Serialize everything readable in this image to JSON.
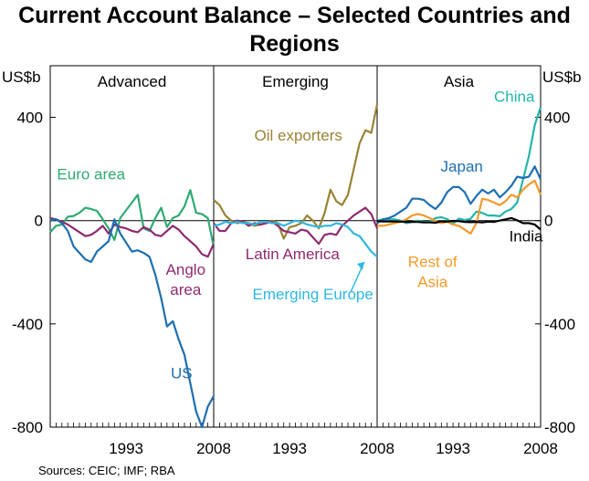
{
  "chart_data": {
    "type": "line",
    "title": "Current Account Balance – Selected Countries and Regions",
    "y_unit_left": "US$b",
    "y_unit_right": "US$b",
    "ylim": [
      -800,
      600
    ],
    "yticks": [
      400,
      0,
      -400,
      -800
    ],
    "ytick_labels": [
      "400",
      "0",
      "-400",
      "-800"
    ],
    "xticks": [
      1993,
      2008
    ],
    "xlim": [
      1980,
      2008
    ],
    "grid": false,
    "panels": [
      {
        "name": "Advanced",
        "series": [
          {
            "name": "Euro area",
            "color": "#2eaa72",
            "label_x": 1987,
            "label_y": 160,
            "x": [
              1980,
              1981,
              1982,
              1983,
              1984,
              1985,
              1986,
              1987,
              1988,
              1989,
              1990,
              1991,
              1992,
              1993,
              1994,
              1995,
              1996,
              1997,
              1998,
              1999,
              2000,
              2001,
              2002,
              2003,
              2004,
              2005,
              2006,
              2007,
              2008
            ],
            "values": [
              -45,
              -20,
              -15,
              15,
              18,
              30,
              50,
              45,
              38,
              5,
              -30,
              -75,
              10,
              40,
              70,
              100,
              -30,
              -40,
              10,
              50,
              -25,
              10,
              20,
              55,
              118,
              30,
              25,
              10,
              -100
            ]
          },
          {
            "name": "Anglo area",
            "color": "#8e2a6f",
            "label_x": 2003.2,
            "label_y": -210,
            "x": [
              1980,
              1981,
              1982,
              1983,
              1984,
              1985,
              1986,
              1987,
              1988,
              1989,
              1990,
              1991,
              1992,
              1993,
              1994,
              1995,
              1996,
              1997,
              1998,
              1999,
              2000,
              2001,
              2002,
              2003,
              2004,
              2005,
              2006,
              2007,
              2008
            ],
            "values": [
              10,
              5,
              -5,
              -15,
              -30,
              -45,
              -60,
              -55,
              -40,
              -20,
              -50,
              -15,
              -25,
              -30,
              -40,
              -45,
              -25,
              -35,
              -55,
              -60,
              -40,
              -20,
              -35,
              -60,
              -80,
              -100,
              -130,
              -140,
              -90
            ]
          },
          {
            "name": "US",
            "color": "#1e6fb0",
            "label_x": 2002.5,
            "label_y": -610,
            "x": [
              1980,
              1981,
              1982,
              1983,
              1984,
              1985,
              1986,
              1987,
              1988,
              1989,
              1990,
              1991,
              1992,
              1993,
              1994,
              1995,
              1996,
              1997,
              1998,
              1999,
              2000,
              2001,
              2002,
              2003,
              2004,
              2005,
              2006,
              2007,
              2008
            ],
            "values": [
              2,
              5,
              -10,
              -40,
              -100,
              -125,
              -150,
              -160,
              -120,
              -100,
              -80,
              5,
              -50,
              -85,
              -120,
              -115,
              -125,
              -140,
              -210,
              -300,
              -410,
              -390,
              -460,
              -520,
              -630,
              -740,
              -800,
              -720,
              -680
            ]
          }
        ]
      },
      {
        "name": "Emerging",
        "series": [
          {
            "name": "Oil exporters",
            "color": "#9a8236",
            "label_x": 1994.5,
            "label_y": 310,
            "x": [
              1980,
              1981,
              1982,
              1983,
              1984,
              1985,
              1986,
              1987,
              1988,
              1989,
              1990,
              1991,
              1992,
              1993,
              1994,
              1995,
              1996,
              1997,
              1998,
              1999,
              2000,
              2001,
              2002,
              2003,
              2004,
              2005,
              2006,
              2007,
              2008
            ],
            "values": [
              80,
              60,
              20,
              0,
              -10,
              -5,
              -10,
              -20,
              -15,
              -10,
              0,
              -10,
              -70,
              -25,
              -20,
              -10,
              20,
              0,
              -30,
              30,
              120,
              75,
              60,
              100,
              200,
              300,
              350,
              340,
              450
            ]
          },
          {
            "name": "Latin America",
            "color": "#8e2a6f",
            "label_x": 1993.5,
            "label_y": -150,
            "x": [
              1980,
              1981,
              1982,
              1983,
              1984,
              1985,
              1986,
              1987,
              1988,
              1989,
              1990,
              1991,
              1992,
              1993,
              1994,
              1995,
              1996,
              1997,
              1998,
              1999,
              2000,
              2001,
              2002,
              2003,
              2004,
              2005,
              2006,
              2007,
              2008
            ],
            "values": [
              -10,
              -40,
              -40,
              -10,
              0,
              -5,
              -20,
              -10,
              -15,
              -10,
              -5,
              -20,
              -40,
              -45,
              -50,
              -35,
              -40,
              -65,
              -90,
              -55,
              -50,
              -55,
              -20,
              0,
              20,
              35,
              50,
              25,
              -30
            ]
          },
          {
            "name": "Emerging Europe",
            "color": "#2fb8e0",
            "label_x": 1997,
            "label_y": -305,
            "x": [
              1980,
              1981,
              1982,
              1983,
              1984,
              1985,
              1986,
              1987,
              1988,
              1989,
              1990,
              1991,
              1992,
              1993,
              1994,
              1995,
              1996,
              1997,
              1998,
              1999,
              2000,
              2001,
              2002,
              2003,
              2004,
              2005,
              2006,
              2007,
              2008
            ],
            "values": [
              -20,
              -15,
              -5,
              -10,
              -5,
              -10,
              -10,
              -15,
              -5,
              -5,
              -10,
              -10,
              -20,
              -10,
              0,
              -5,
              -15,
              -20,
              -25,
              -20,
              -20,
              -10,
              -15,
              -25,
              -50,
              -60,
              -90,
              -120,
              -140
            ]
          }
        ]
      },
      {
        "name": "Asia",
        "series": [
          {
            "name": "China",
            "color": "#22b5ad",
            "label_x": 2003.5,
            "label_y": 460,
            "x": [
              1980,
              1981,
              1982,
              1983,
              1984,
              1985,
              1986,
              1987,
              1988,
              1989,
              1990,
              1991,
              1992,
              1993,
              1994,
              1995,
              1996,
              1997,
              1998,
              1999,
              2000,
              2001,
              2002,
              2003,
              2004,
              2005,
              2006,
              2007,
              2008
            ],
            "values": [
              0,
              5,
              5,
              5,
              0,
              -10,
              -5,
              0,
              -5,
              -5,
              10,
              13,
              6,
              -12,
              8,
              2,
              7,
              35,
              30,
              20,
              20,
              17,
              35,
              45,
              70,
              160,
              250,
              370,
              440
            ]
          },
          {
            "name": "Japan",
            "color": "#1e6fb0",
            "label_x": 1994.5,
            "label_y": 190,
            "x": [
              1980,
              1981,
              1982,
              1983,
              1984,
              1985,
              1986,
              1987,
              1988,
              1989,
              1990,
              1991,
              1992,
              1993,
              1994,
              1995,
              1996,
              1997,
              1998,
              1999,
              2000,
              2001,
              2002,
              2003,
              2004,
              2005,
              2006,
              2007,
              2008
            ],
            "values": [
              -10,
              5,
              10,
              20,
              35,
              50,
              85,
              85,
              80,
              60,
              45,
              70,
              110,
              130,
              130,
              110,
              65,
              95,
              120,
              105,
              120,
              90,
              110,
              135,
              170,
              165,
              170,
              210,
              160
            ]
          },
          {
            "name": "Rest of Asia",
            "color": "#f39a2a",
            "label_x": 1989.5,
            "label_y": -180,
            "x": [
              1980,
              1981,
              1982,
              1983,
              1984,
              1985,
              1986,
              1987,
              1988,
              1989,
              1990,
              1991,
              1992,
              1993,
              1994,
              1995,
              1996,
              1997,
              1998,
              1999,
              2000,
              2001,
              2002,
              2003,
              2004,
              2005,
              2006,
              2007,
              2008
            ],
            "values": [
              -20,
              -20,
              -15,
              -10,
              -5,
              5,
              20,
              25,
              20,
              10,
              0,
              -10,
              -5,
              -15,
              -20,
              -35,
              -50,
              -10,
              85,
              80,
              70,
              60,
              75,
              100,
              90,
              120,
              140,
              155,
              100
            ]
          },
          {
            "name": "India",
            "color": "#000000",
            "label_x": 2005.5,
            "label_y": -80,
            "x": [
              1980,
              1981,
              1982,
              1983,
              1984,
              1985,
              1986,
              1987,
              1988,
              1989,
              1990,
              1991,
              1992,
              1993,
              1994,
              1995,
              1996,
              1997,
              1998,
              1999,
              2000,
              2001,
              2002,
              2003,
              2004,
              2005,
              2006,
              2007,
              2008
            ],
            "values": [
              -2,
              -3,
              -3,
              -3,
              -4,
              -5,
              -5,
              -5,
              -7,
              -7,
              -8,
              -3,
              -4,
              -1,
              -2,
              -5,
              -6,
              -5,
              -7,
              -4,
              -5,
              0,
              5,
              10,
              1,
              -10,
              -10,
              -15,
              -35
            ]
          }
        ]
      }
    ]
  },
  "source": "Sources: CEIC; IMF; RBA"
}
